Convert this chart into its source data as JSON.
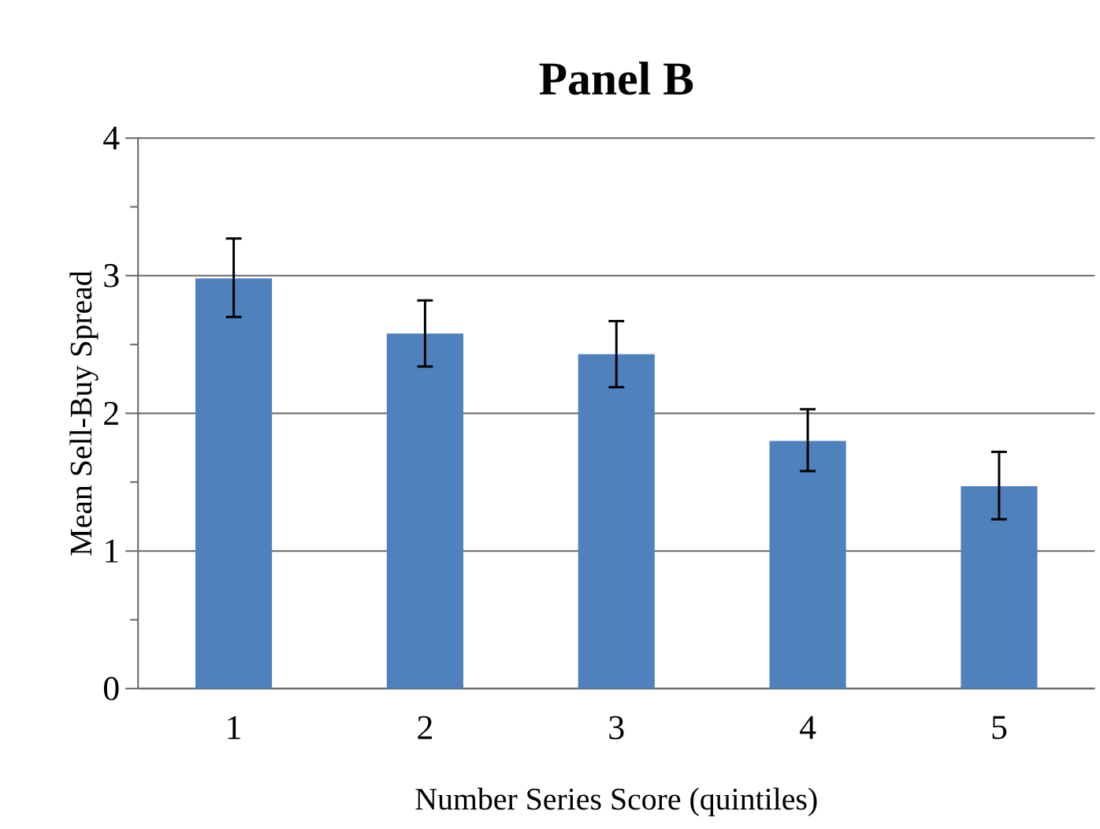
{
  "chart_data": {
    "type": "bar",
    "title": "Panel B",
    "xlabel": "Number Series Score (quintiles)",
    "ylabel": "Mean Sell-Buy Spread",
    "categories": [
      "1",
      "2",
      "3",
      "4",
      "5"
    ],
    "values": [
      2.98,
      2.58,
      2.43,
      1.8,
      1.47
    ],
    "errors": [
      [
        2.7,
        3.27
      ],
      [
        2.34,
        2.82
      ],
      [
        2.19,
        2.67
      ],
      [
        1.58,
        2.03
      ],
      [
        1.23,
        1.72
      ]
    ],
    "color": "#4f81bd",
    "ylim": [
      0,
      4
    ],
    "yticks": [
      0,
      {
        "value": 0.5,
        "label": null
      },
      1,
      {
        "value": 1.5,
        "label": null
      },
      2,
      {
        "value": 2.5,
        "label": null
      },
      3,
      {
        "value": 3.5,
        "label": null
      },
      4
    ],
    "grid": "y"
  }
}
